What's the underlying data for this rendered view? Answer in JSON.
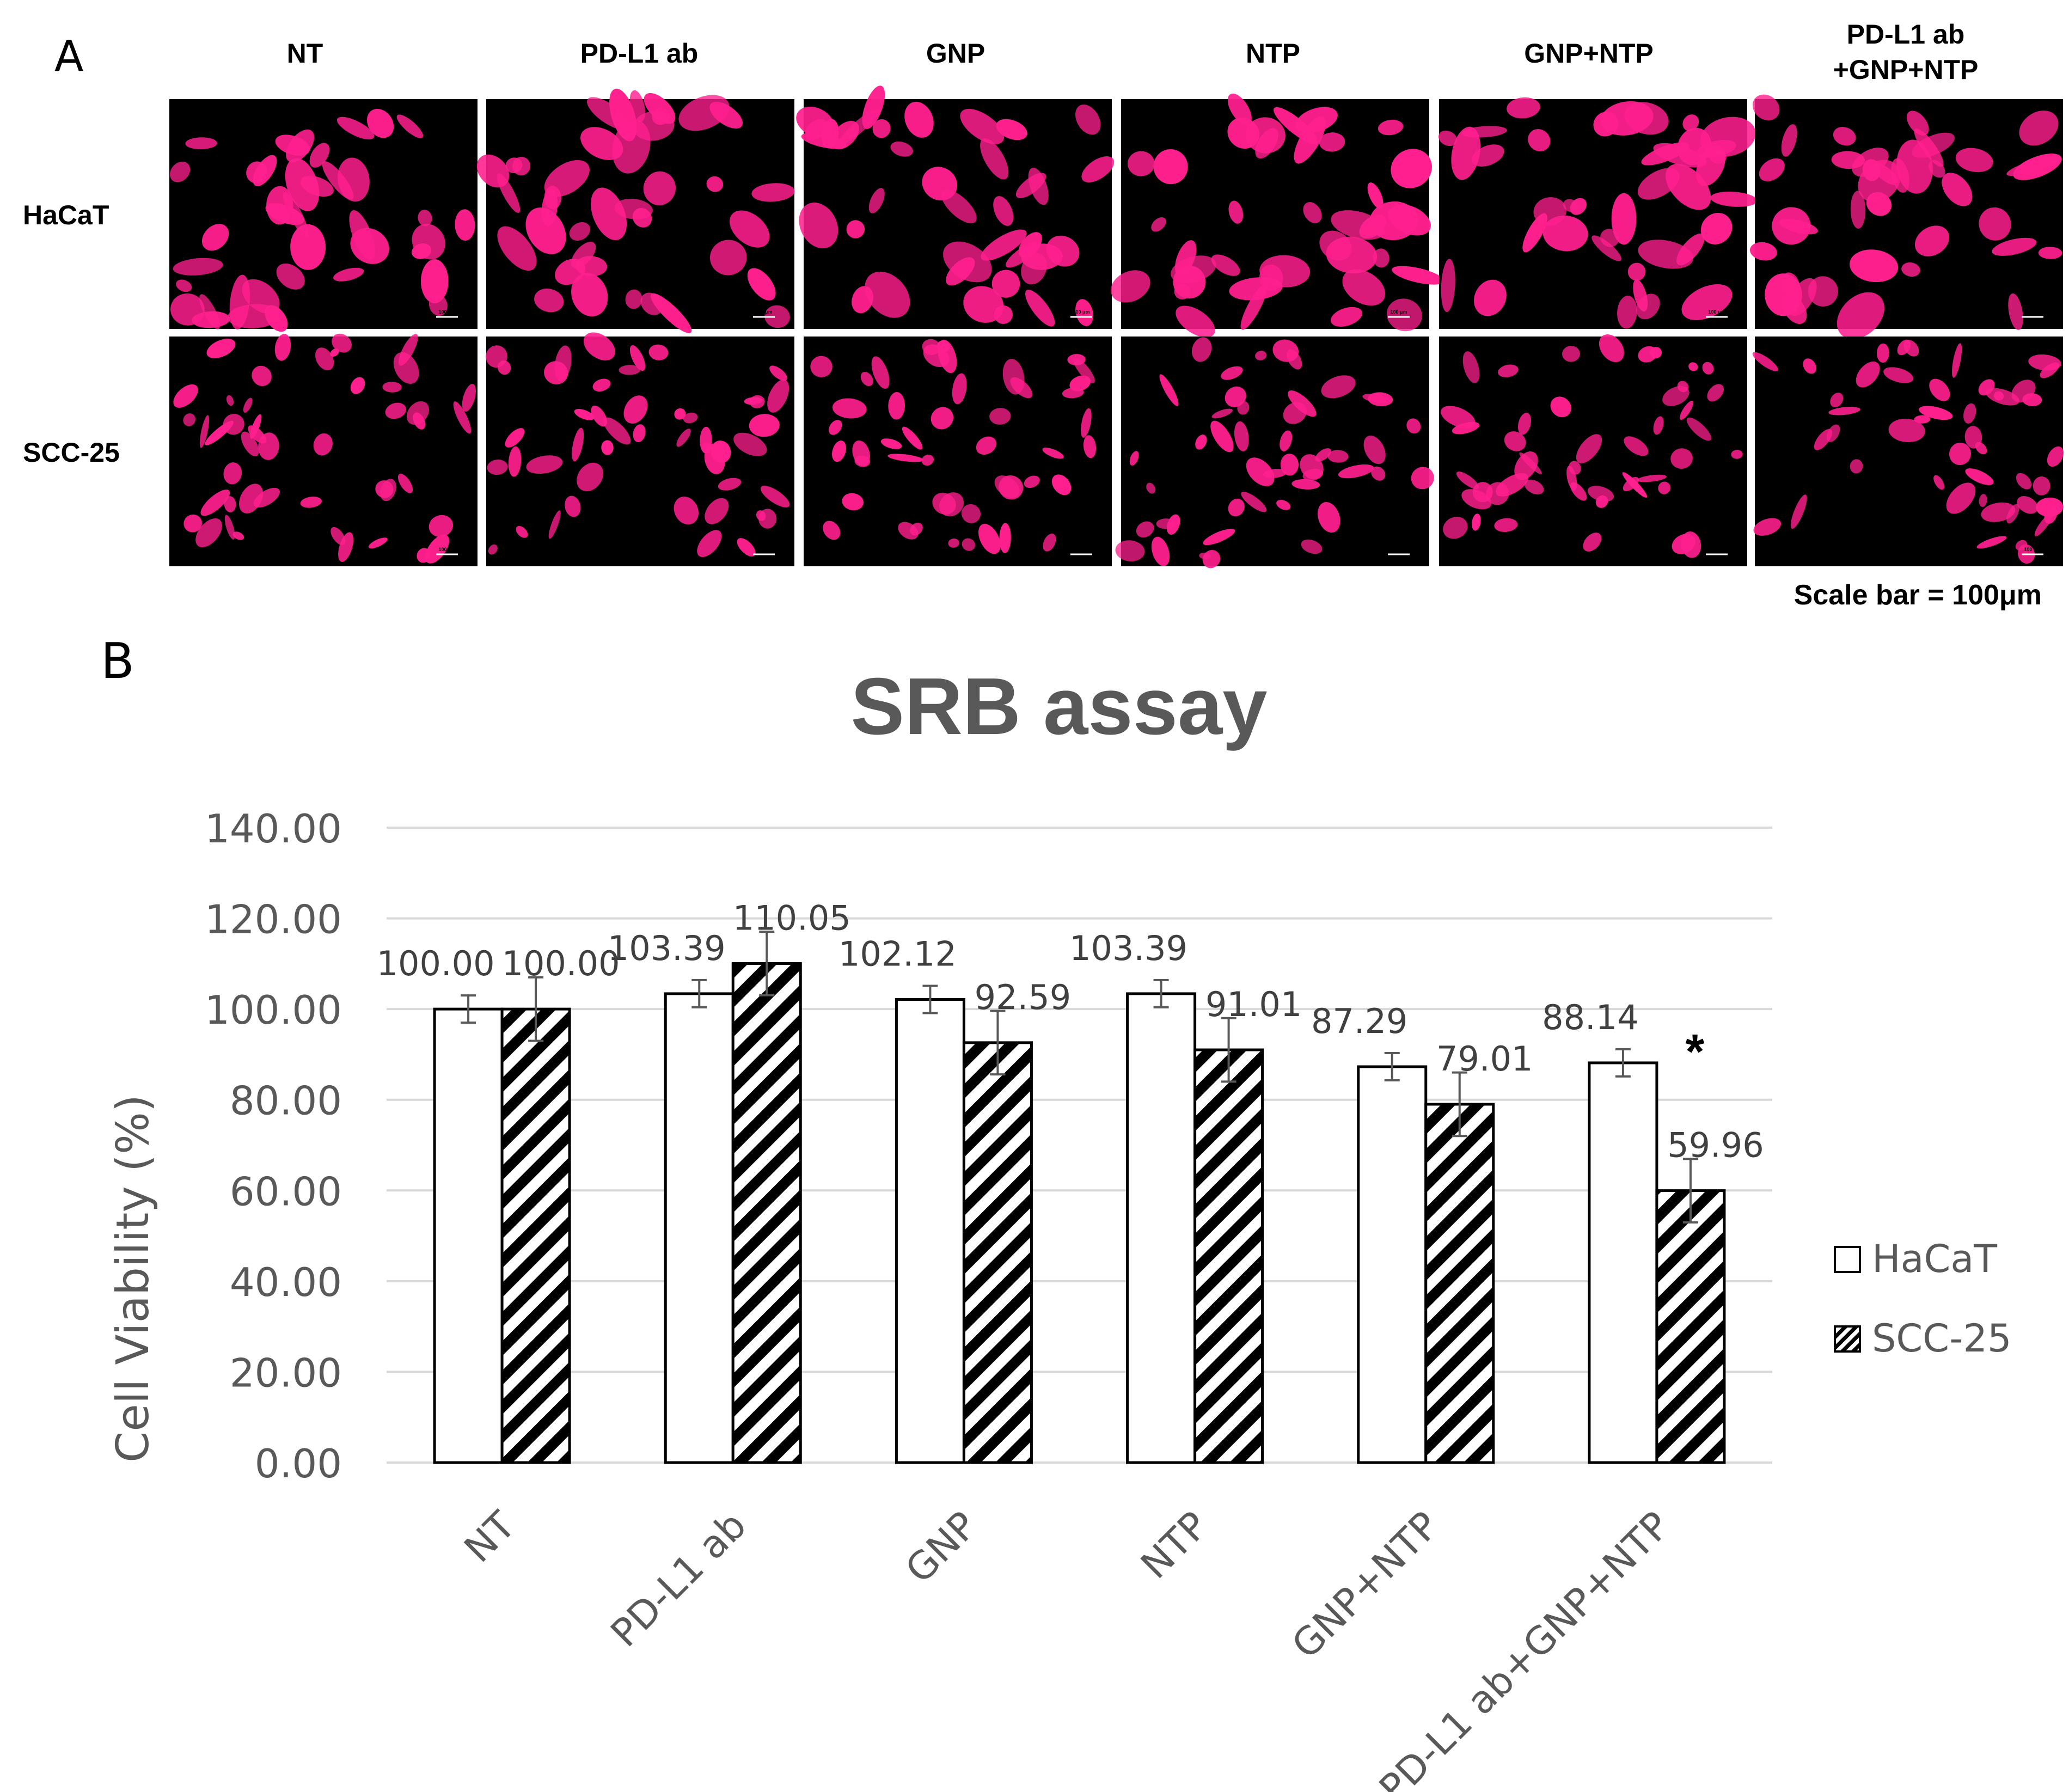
{
  "panel_a": {
    "label": "A",
    "columns": [
      "NT",
      "PD-L1 ab",
      "GNP",
      "NTP",
      "GNP+NTP"
    ],
    "last_column": {
      "line1": "PD-L1 ab",
      "line2": "+GNP+NTP"
    },
    "rows": [
      "HaCaT",
      "SCC-25"
    ],
    "tile_scale_text": "100 μm",
    "scale_bar_caption": "Scale bar = 100μm",
    "stain_color": "#ff1f8e",
    "background_color": "#000000"
  },
  "panel_b": {
    "label": "B"
  },
  "chart_data": {
    "type": "bar",
    "title": "SRB assay",
    "xlabel": "",
    "ylabel": "Cell Viability (%)",
    "ylim": [
      0,
      140
    ],
    "yticks": [
      "0.00",
      "20.00",
      "40.00",
      "60.00",
      "80.00",
      "100.00",
      "120.00",
      "140.00"
    ],
    "categories": [
      "NT",
      "PD-L1 ab",
      "GNP",
      "NTP",
      "GNP+NTP",
      "PD-L1 ab+GNP+NTP"
    ],
    "series": [
      {
        "name": "HaCaT",
        "fill": "white",
        "values": [
          100.0,
          103.39,
          102.12,
          103.39,
          87.29,
          88.14
        ],
        "labels": [
          "100.00",
          "103.39",
          "102.12",
          "103.39",
          "87.29",
          "88.14"
        ],
        "errors": [
          3,
          3,
          3,
          3,
          3,
          3
        ]
      },
      {
        "name": "SCC-25",
        "fill": "diagonal-stripes",
        "values": [
          100.0,
          110.05,
          92.59,
          91.01,
          79.01,
          59.96
        ],
        "labels": [
          "100.00",
          "110.05",
          "92.59",
          "91.01",
          "79.01",
          "59.96"
        ],
        "errors": [
          7,
          7,
          7,
          7,
          7,
          7
        ]
      }
    ],
    "annotations": [
      {
        "text": "*",
        "category": "PD-L1 ab+GNP+NTP"
      }
    ],
    "grid": true,
    "legend_position": "right"
  }
}
